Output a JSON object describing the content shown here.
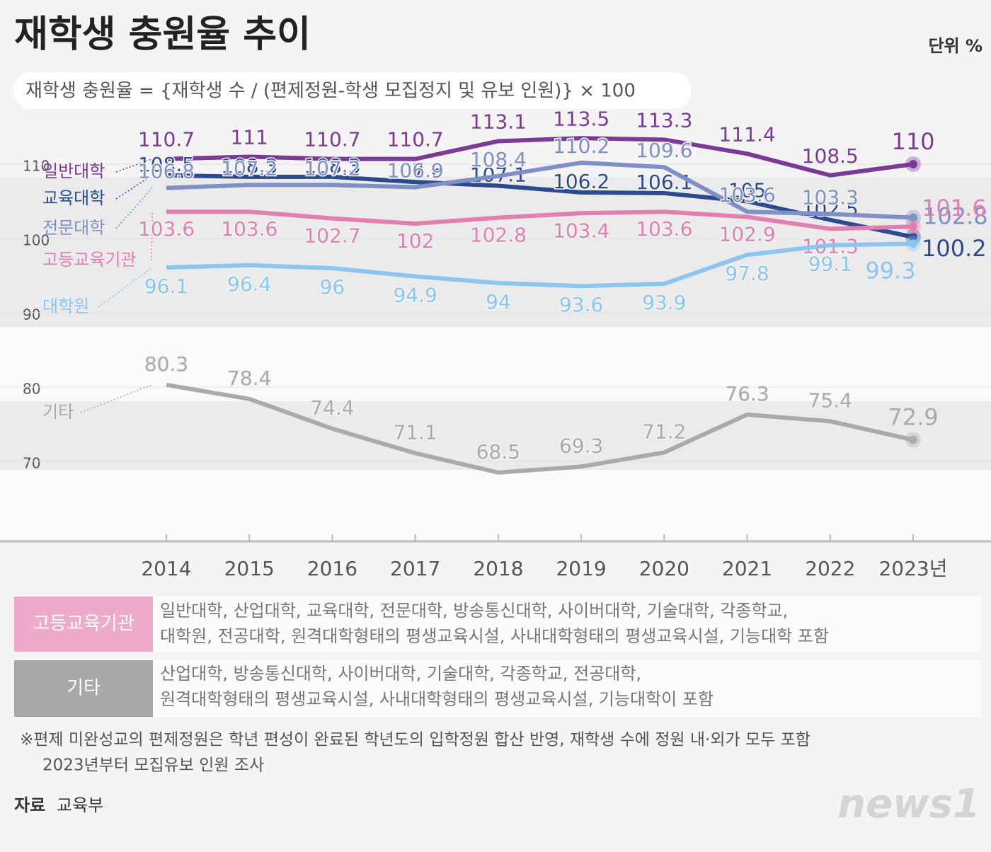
{
  "title": "재학생 충원율 추이",
  "unit": "단위 %",
  "formula": "재학생 충원율 = {재학생 수 / (편제정원-학생 모집정지 및 유보 인원)} × 100",
  "chart_data": {
    "type": "line",
    "categories": [
      "2014",
      "2015",
      "2016",
      "2017",
      "2018",
      "2019",
      "2020",
      "2021",
      "2022",
      "2023년"
    ],
    "series": [
      {
        "name": "일반대학",
        "color": "#7b3a96",
        "values": [
          110.7,
          111.0,
          110.7,
          110.7,
          113.1,
          113.5,
          113.3,
          111.4,
          108.5,
          110.0
        ]
      },
      {
        "name": "교육대학",
        "color": "#2b4b8e",
        "values": [
          108.5,
          108.3,
          108.3,
          107.6,
          107.1,
          106.2,
          106.1,
          105.0,
          102.5,
          100.2
        ]
      },
      {
        "name": "전문대학",
        "color": "#8090c6",
        "values": [
          106.8,
          107.2,
          107.2,
          106.9,
          108.4,
          110.2,
          109.6,
          103.6,
          103.3,
          102.8
        ]
      },
      {
        "name": "고등교육기관",
        "color": "#e07fb0",
        "values": [
          103.6,
          103.6,
          102.7,
          102.0,
          102.8,
          103.4,
          103.6,
          102.9,
          101.3,
          101.6
        ]
      },
      {
        "name": "대학원",
        "color": "#8cc6ee",
        "values": [
          96.1,
          96.4,
          96.0,
          94.9,
          94.0,
          93.6,
          93.9,
          97.8,
          99.1,
          99.3
        ]
      },
      {
        "name": "기타",
        "color": "#aaaaaa",
        "values": [
          80.3,
          78.4,
          74.4,
          71.1,
          68.5,
          69.3,
          71.2,
          76.3,
          75.4,
          72.9
        ]
      }
    ],
    "ylim": [
      60,
      115
    ],
    "yticks": [
      70,
      80,
      90,
      100,
      110
    ],
    "grid": true
  },
  "notes": [
    {
      "label": "고등교육기관",
      "lines": [
        "일반대학, 산업대학, 교육대학, 전문대학, 방송통신대학, 사이버대학, 기술대학, 각종학교,",
        "대학원, 전공대학, 원격대학형태의 평생교육시설, 사내대학형태의 평생교육시설, 기능대학 포함"
      ]
    },
    {
      "label": "기타",
      "lines": [
        "산업대학, 방송통신대학, 사이버대학, 기술대학, 각종학교, 전공대학,",
        "원격대학형태의 평생교육시설, 사내대학형태의 평생교육시설, 기능대학이 포함"
      ]
    }
  ],
  "footnote": [
    "※편제 미완성교의 편제정원은 학년 편성이 완료된 학년도의 입학정원 합산 반영, 재학생 수에 정원 내·외가 모두 포함",
    "2023년부터 모집유보 인원 조사"
  ],
  "source": {
    "label": "자료",
    "text": "교육부"
  },
  "logo": "news1"
}
